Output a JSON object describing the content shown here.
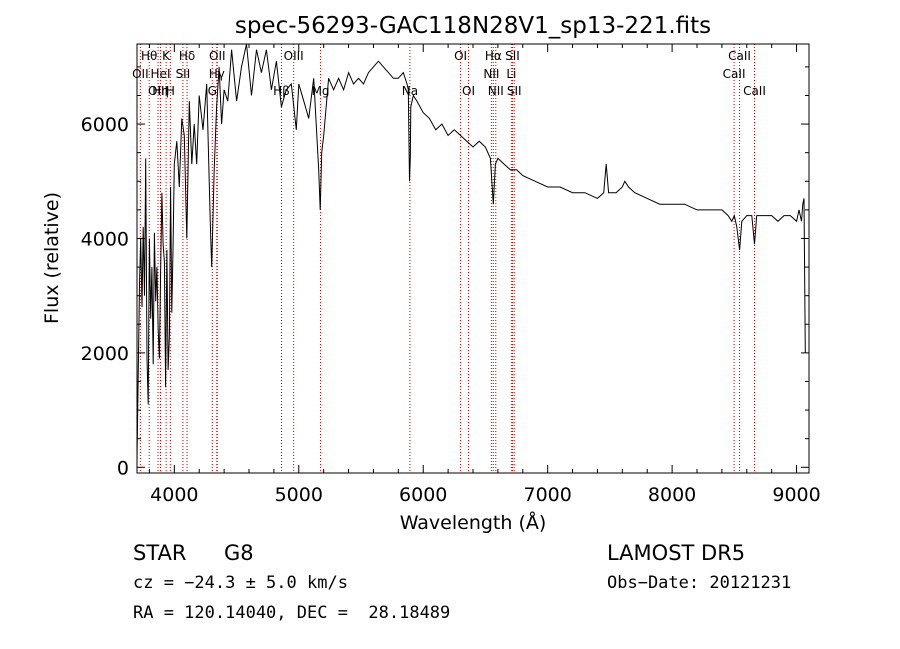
{
  "chart_data": {
    "type": "line",
    "title": "spec-56293-GAC118N28V1_sp13-221.fits",
    "xlabel": "Wavelength (Å)",
    "ylabel": "Flux (relative)",
    "xlim": [
      3700,
      9100
    ],
    "ylim": [
      -100,
      7400
    ],
    "xticks": [
      4000,
      5000,
      6000,
      7000,
      8000,
      9000
    ],
    "yticks": [
      0,
      2000,
      4000,
      6000
    ],
    "grid": false,
    "line_color": "#000000",
    "marker_color": "#cc0000",
    "series": [
      {
        "x": [
          3700,
          3710,
          3720,
          3730,
          3740,
          3750,
          3760,
          3770,
          3780,
          3790,
          3800,
          3810,
          3820,
          3830,
          3840,
          3850,
          3860,
          3870,
          3880,
          3890,
          3900,
          3910,
          3920,
          3930,
          3940,
          3950,
          3960,
          3970,
          3980,
          3990,
          4000,
          4020,
          4040,
          4060,
          4080,
          4100,
          4120,
          4140,
          4160,
          4180,
          4200,
          4230,
          4260,
          4290,
          4300,
          4320,
          4340,
          4360,
          4380,
          4400,
          4430,
          4460,
          4500,
          4540,
          4580,
          4620,
          4660,
          4700,
          4740,
          4780,
          4820,
          4860,
          4900,
          4940,
          4980,
          5000,
          5040,
          5080,
          5120,
          5160,
          5172,
          5184,
          5200,
          5240,
          5280,
          5320,
          5360,
          5400,
          5440,
          5480,
          5520,
          5560,
          5600,
          5640,
          5680,
          5720,
          5760,
          5800,
          5840,
          5870,
          5880,
          5890,
          5896,
          5900,
          5920,
          5950,
          6000,
          6050,
          6100,
          6150,
          6200,
          6250,
          6300,
          6350,
          6400,
          6450,
          6500,
          6540,
          6563,
          6580,
          6600,
          6650,
          6700,
          6750,
          6800,
          6900,
          7000,
          7100,
          7200,
          7300,
          7400,
          7450,
          7470,
          7490,
          7500,
          7550,
          7600,
          7620,
          7650,
          7700,
          7800,
          7900,
          8000,
          8100,
          8200,
          8300,
          8400,
          8450,
          8480,
          8500,
          8520,
          8542,
          8560,
          8600,
          8640,
          8662,
          8680,
          8700,
          8750,
          8800,
          8850,
          8900,
          8950,
          9000,
          9020,
          9040,
          9050,
          9060,
          9070
        ],
        "y": [
          100,
          1600,
          3200,
          4000,
          2800,
          4200,
          3000,
          5400,
          1900,
          1100,
          4000,
          2600,
          3500,
          1800,
          4100,
          2900,
          3500,
          2400,
          1900,
          3400,
          4800,
          3900,
          3600,
          1400,
          3800,
          1700,
          2300,
          4900,
          2700,
          3900,
          5300,
          5700,
          4900,
          6100,
          5800,
          4000,
          6400,
          5300,
          6000,
          5300,
          6500,
          5900,
          6700,
          4200,
          3500,
          5200,
          6300,
          7000,
          6000,
          6600,
          6400,
          7300,
          6400,
          7000,
          7400,
          6500,
          7300,
          6900,
          7300,
          6600,
          7100,
          6300,
          6600,
          6700,
          5900,
          6700,
          6400,
          6100,
          6800,
          5200,
          4500,
          5500,
          5800,
          6800,
          6600,
          6800,
          6600,
          6900,
          6700,
          6800,
          6700,
          6900,
          7000,
          7100,
          7000,
          6900,
          6800,
          6800,
          6900,
          6700,
          6600,
          5000,
          5400,
          6300,
          6500,
          6400,
          6200,
          6100,
          5900,
          6000,
          5800,
          5900,
          5800,
          5700,
          5600,
          5700,
          5600,
          5400,
          4600,
          5300,
          5400,
          5300,
          5200,
          5200,
          5100,
          5000,
          4900,
          4900,
          4800,
          4800,
          4700,
          4800,
          5300,
          4800,
          4800,
          4800,
          4900,
          5000,
          4900,
          4800,
          4700,
          4600,
          4600,
          4600,
          4500,
          4500,
          4500,
          4400,
          4300,
          4400,
          4200,
          3800,
          4300,
          4400,
          4400,
          3900,
          4400,
          4400,
          4400,
          4400,
          4300,
          4400,
          4400,
          4300,
          4500,
          4300,
          4600,
          4700,
          2000
        ]
      }
    ],
    "lines": [
      {
        "label": "Hθ",
        "x": 3798,
        "row": 0
      },
      {
        "label": "K",
        "x": 3934,
        "row": 0
      },
      {
        "label": "Hδ",
        "x": 4102,
        "row": 0
      },
      {
        "label": "OII",
        "x": 4345,
        "row": 0
      },
      {
        "label": "OIII",
        "x": 4959,
        "row": 0
      },
      {
        "label": "OI",
        "x": 6300,
        "row": 0
      },
      {
        "label": "Hα",
        "x": 6563,
        "row": 0
      },
      {
        "label": "SII",
        "x": 6717,
        "row": 0
      },
      {
        "label": "CaII",
        "x": 8542,
        "row": 0
      },
      {
        "label": "OII",
        "x": 3727,
        "row": 1
      },
      {
        "label": "HeI",
        "x": 3889,
        "row": 1
      },
      {
        "label": "SII",
        "x": 4069,
        "row": 1
      },
      {
        "label": "Hγ",
        "x": 4341,
        "row": 1
      },
      {
        "label": "NII",
        "x": 6548,
        "row": 1
      },
      {
        "label": "Li",
        "x": 6708,
        "row": 1
      },
      {
        "label": "CaII",
        "x": 8498,
        "row": 1
      },
      {
        "label": "OIII",
        "x": 3869,
        "row": 2
      },
      {
        "label": "Hη",
        "x": 3889,
        "row": 2
      },
      {
        "label": "H",
        "x": 3968,
        "row": 2
      },
      {
        "label": "G",
        "x": 4305,
        "row": 2
      },
      {
        "label": "OI",
        "x": 6364,
        "row": 2
      },
      {
        "label": "NII",
        "x": 6583,
        "row": 2
      },
      {
        "label": "SII",
        "x": 6731,
        "row": 2
      },
      {
        "label": "CaII",
        "x": 8662,
        "row": 2
      },
      {
        "label": "Hβ",
        "x": 4861,
        "row": 3
      },
      {
        "label": "Mg",
        "x": 5175,
        "row": 3
      },
      {
        "label": "Na",
        "x": 5893,
        "row": 3
      }
    ]
  },
  "info": {
    "obj_class": "STAR",
    "subclass": "G8",
    "survey": "LAMOST DR5",
    "cz": "cz = −24.3 ± 5.0 km/s",
    "obs_date": "Obs−Date: 20121231",
    "coords": "RA = 120.14040, DEC =  28.18489"
  }
}
